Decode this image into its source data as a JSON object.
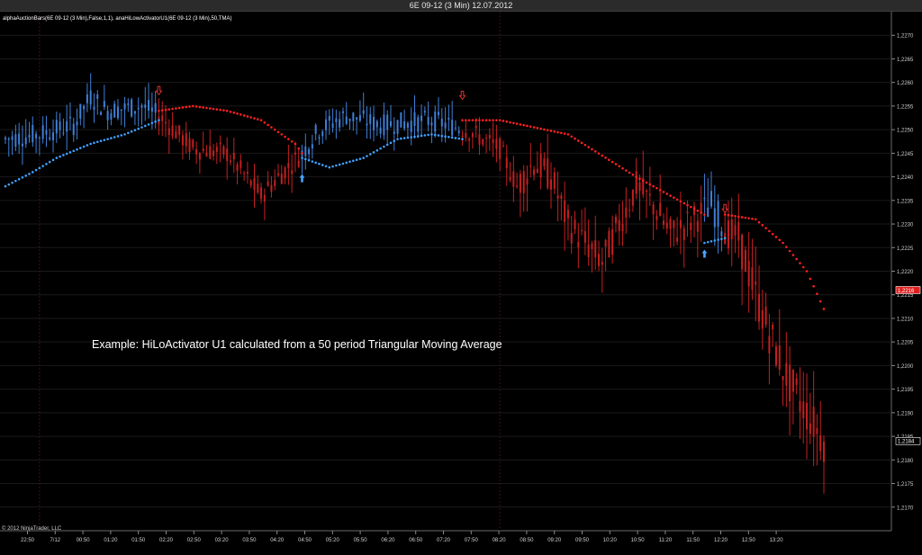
{
  "window": {
    "title": "6E 09-12 (3 Min)  12.07.2012"
  },
  "chart_data": {
    "type": "candlestick",
    "indicator_label": "alphaAuctionBars(6E 09-12 (3 Min),False,1,1), anaHiLowActivatorU1(6E 09-12 (3 Min),50,TMA)",
    "annotation": "Example: HiLoActivator U1 calculated from a 50 period Triangular Moving Average",
    "copyright": "© 2012 NinjaTrader, LLC",
    "x_ticks": [
      "22:50",
      "7/12",
      "00:50",
      "01:20",
      "01:50",
      "02:20",
      "02:50",
      "03:20",
      "03:50",
      "04:20",
      "04:50",
      "05:20",
      "05:50",
      "06:20",
      "06:50",
      "07:20",
      "07:50",
      "08:20",
      "08:50",
      "09:20",
      "09:50",
      "10:20",
      "10:50",
      "11:20",
      "11:50",
      "12:20",
      "12:50",
      "13:20"
    ],
    "y_ticks": [
      "1,2270",
      "1,2265",
      "1,2260",
      "1,2255",
      "1,2250",
      "1,2245",
      "1,2240",
      "1,2235",
      "1,2230",
      "1,2225",
      "1,2220",
      "1,2215",
      "1,2210",
      "1,2205",
      "1,2200",
      "1,2195",
      "1,2190",
      "1,2185",
      "1,2180",
      "1,2175",
      "1,2170"
    ],
    "ylim": [
      1.2165,
      1.2275
    ],
    "x_index_range": [
      0,
      240
    ],
    "price_markers": [
      {
        "label": "1,2216",
        "value": 1.2216,
        "color": "#e02020",
        "text_color": "#ffffff"
      },
      {
        "label": "1,2184",
        "value": 1.2184,
        "color": "#000000",
        "text_color": "#ffffff"
      }
    ],
    "session_dividers": [
      10,
      145
    ],
    "price_path": [
      [
        0,
        1.2248
      ],
      [
        10,
        1.2249
      ],
      [
        20,
        1.2251
      ],
      [
        25,
        1.2257
      ],
      [
        30,
        1.2254
      ],
      [
        40,
        1.2255
      ],
      [
        45,
        1.2253
      ],
      [
        55,
        1.2246
      ],
      [
        65,
        1.2245
      ],
      [
        75,
        1.2236
      ],
      [
        80,
        1.224
      ],
      [
        87,
        1.2245
      ],
      [
        92,
        1.225
      ],
      [
        100,
        1.2253
      ],
      [
        110,
        1.2251
      ],
      [
        125,
        1.2252
      ],
      [
        135,
        1.225
      ],
      [
        145,
        1.2246
      ],
      [
        150,
        1.2238
      ],
      [
        155,
        1.2243
      ],
      [
        160,
        1.224
      ],
      [
        165,
        1.223
      ],
      [
        175,
        1.2222
      ],
      [
        180,
        1.223
      ],
      [
        185,
        1.2238
      ],
      [
        190,
        1.2234
      ],
      [
        195,
        1.2228
      ],
      [
        200,
        1.223
      ],
      [
        207,
        1.2234
      ],
      [
        212,
        1.2228
      ],
      [
        215,
        1.2227
      ],
      [
        220,
        1.2215
      ],
      [
        225,
        1.2205
      ],
      [
        230,
        1.2196
      ],
      [
        235,
        1.219
      ],
      [
        240,
        1.2184
      ]
    ],
    "up_segments": [
      [
        0,
        45
      ],
      [
        87,
        134
      ],
      [
        205,
        211
      ]
    ],
    "activator_segments": [
      {
        "color": "blue",
        "points": [
          [
            0,
            1.2238
          ],
          [
            8,
            1.2241
          ],
          [
            15,
            1.2244
          ],
          [
            25,
            1.2247
          ],
          [
            35,
            1.2249
          ],
          [
            45,
            1.2252
          ]
        ]
      },
      {
        "color": "red",
        "points": [
          [
            45,
            1.2254
          ],
          [
            55,
            1.2255
          ],
          [
            65,
            1.2254
          ],
          [
            75,
            1.2252
          ],
          [
            85,
            1.2247
          ],
          [
            87,
            1.2245
          ]
        ]
      },
      {
        "color": "blue",
        "points": [
          [
            87,
            1.2244
          ],
          [
            95,
            1.2242
          ],
          [
            105,
            1.2244
          ],
          [
            115,
            1.2248
          ],
          [
            125,
            1.2249
          ],
          [
            134,
            1.2248
          ]
        ]
      },
      {
        "color": "red",
        "points": [
          [
            134,
            1.2252
          ],
          [
            145,
            1.2252
          ],
          [
            165,
            1.2249
          ],
          [
            185,
            1.224
          ],
          [
            205,
            1.2232
          ]
        ]
      },
      {
        "color": "blue",
        "points": [
          [
            205,
            1.2226
          ],
          [
            211,
            1.2227
          ]
        ]
      },
      {
        "color": "red",
        "points": [
          [
            211,
            1.2232
          ],
          [
            220,
            1.2231
          ],
          [
            228,
            1.2226
          ],
          [
            235,
            1.222
          ],
          [
            240,
            1.2212
          ]
        ]
      }
    ],
    "signals": [
      {
        "type": "sell",
        "x": 45,
        "y": 1.2258,
        "color": "#e03030"
      },
      {
        "type": "buy",
        "x": 87,
        "y": 1.224,
        "color": "#4aa3ff"
      },
      {
        "type": "sell",
        "x": 134,
        "y": 1.2257,
        "color": "#e03030"
      },
      {
        "type": "buy",
        "x": 205,
        "y": 1.2224,
        "color": "#4aa3ff"
      },
      {
        "type": "sell",
        "x": 211,
        "y": 1.2233,
        "color": "#e03030"
      }
    ],
    "colors": {
      "up_bar": "#3f7fd6",
      "down_bar": "#c42020",
      "activator_blue": "#3fa0ff",
      "activator_red": "#ff2020",
      "grid": "#1a1a1a",
      "axis_text": "#cfcfcf"
    }
  }
}
